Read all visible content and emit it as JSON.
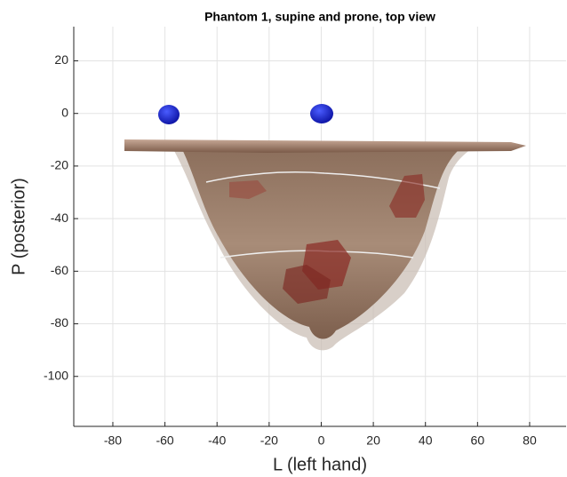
{
  "chart_data": {
    "type": "surface",
    "title": "Phantom 1, supine and prone, top view",
    "xlabel": "L (left hand)",
    "ylabel": "P (posterior)",
    "xlim": [
      -95,
      94
    ],
    "ylim": [
      -119,
      33
    ],
    "xticks": [
      -80,
      -60,
      -40,
      -20,
      0,
      20,
      40,
      60,
      80
    ],
    "yticks": [
      -100,
      -80,
      -60,
      -40,
      -20,
      0,
      20
    ],
    "grid": true
  }
}
